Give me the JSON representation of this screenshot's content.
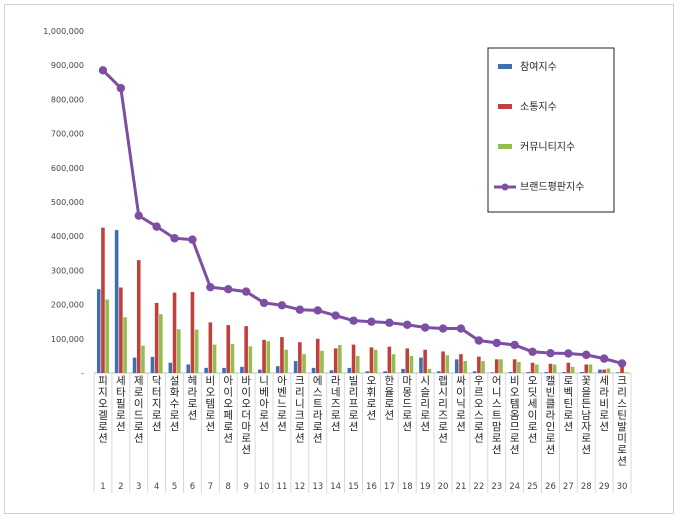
{
  "chart_data": {
    "type": "bar",
    "title": "",
    "xlabel": "",
    "ylabel": "",
    "ylim": [
      0,
      1000000
    ],
    "yticks": [
      0,
      100000,
      200000,
      300000,
      400000,
      500000,
      600000,
      700000,
      800000,
      900000,
      1000000
    ],
    "ytick_labels": [
      "-",
      "100,000",
      "200,000",
      "300,000",
      "400,000",
      "500,000",
      "600,000",
      "700,000",
      "800,000",
      "900,000",
      "1,000,000"
    ],
    "categories": [
      "피지오겔로션",
      "세타필로션",
      "제로이드로션",
      "닥터지로션",
      "설화수로션",
      "헤라로션",
      "비오템로션",
      "아이오페로션",
      "바이오더마로션",
      "니베아로션",
      "아벤느로션",
      "크리니크로션",
      "에스트라로션",
      "라네즈로션",
      "빌리프로션",
      "오휘로션",
      "한율로션",
      "마몽드로션",
      "시슬리로션",
      "랩시리즈로션",
      "싸이닉로션",
      "우르오스로션",
      "어니스트맘로션",
      "비오템옴므로션",
      "오딧세이로션",
      "캘빈클라인로션",
      "로벡틴로션",
      "꽃을든남자로션",
      "세라비로션",
      "크리스틴발미로션"
    ],
    "ranks": [
      "1",
      "2",
      "3",
      "4",
      "5",
      "6",
      "7",
      "8",
      "9",
      "10",
      "11",
      "12",
      "13",
      "14",
      "15",
      "16",
      "17",
      "18",
      "19",
      "20",
      "21",
      "22",
      "23",
      "24",
      "25",
      "26",
      "27",
      "28",
      "29",
      "30"
    ],
    "series": [
      {
        "name": "참여지수",
        "kind": "bar",
        "color": "#3e6fb0",
        "values": [
          245000,
          418000,
          45000,
          47000,
          30000,
          25000,
          15000,
          15000,
          18000,
          10000,
          20000,
          35000,
          15000,
          8000,
          15000,
          5000,
          5000,
          12000,
          45000,
          5000,
          40000,
          5000,
          2000,
          3000,
          3000,
          3000,
          3000,
          3000,
          10000,
          2000
        ]
      },
      {
        "name": "소통지수",
        "kind": "bar",
        "color": "#c0413c",
        "values": [
          425000,
          250000,
          330000,
          205000,
          235000,
          237000,
          148000,
          140000,
          137000,
          97000,
          105000,
          90000,
          100000,
          72000,
          83000,
          75000,
          77000,
          72000,
          68000,
          63000,
          55000,
          48000,
          40000,
          40000,
          30000,
          27000,
          30000,
          25000,
          10000,
          25000
        ]
      },
      {
        "name": "커뮤니티지수",
        "kind": "bar",
        "color": "#94bd4f",
        "values": [
          215000,
          163000,
          80000,
          172000,
          128000,
          127000,
          83000,
          85000,
          78000,
          93000,
          68000,
          55000,
          65000,
          82000,
          50000,
          68000,
          55000,
          50000,
          12000,
          52000,
          35000,
          35000,
          40000,
          32000,
          25000,
          25000,
          18000,
          25000,
          13000,
          2000
        ]
      },
      {
        "name": "브랜드평판지수",
        "kind": "line",
        "color": "#7e4ea3",
        "values": [
          885000,
          833000,
          460000,
          428000,
          394000,
          390000,
          251000,
          245000,
          238000,
          205000,
          198000,
          185000,
          183000,
          168000,
          153000,
          150000,
          147000,
          141000,
          133000,
          130000,
          130000,
          95000,
          88000,
          82000,
          62000,
          58000,
          57000,
          53000,
          42000,
          28000
        ]
      }
    ],
    "grid": false,
    "legend": "top-right"
  }
}
